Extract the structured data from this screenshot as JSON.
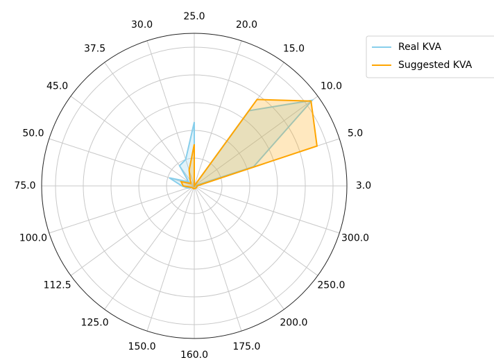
{
  "chart_data": {
    "type": "radar",
    "categories": [
      "3.0",
      "5.0",
      "10.0",
      "15.0",
      "20.0",
      "25.0",
      "30.0",
      "37.5",
      "45.0",
      "50.0",
      "75.0",
      "100.0",
      "112.5",
      "125.0",
      "150.0",
      "160.0",
      "175.0",
      "200.0",
      "250.0",
      "300.0"
    ],
    "series": [
      {
        "name": "Real KVA",
        "color": "#87ceeb",
        "values": [
          0.0,
          0.45,
          1.05,
          0.67,
          0.0,
          0.46,
          0.2,
          0.18,
          0.05,
          0.19,
          0.09,
          0.05,
          0.02,
          0.02,
          0.02,
          0.02,
          0.02,
          0.02,
          0.02,
          0.02
        ]
      },
      {
        "name": "Suggested KVA",
        "color": "#ffa500",
        "values": [
          0.02,
          0.93,
          1.04,
          0.77,
          0.0,
          0.3,
          0.12,
          0.05,
          0.03,
          0.1,
          0.08,
          0.03,
          0.02,
          0.02,
          0.02,
          0.02,
          0.02,
          0.02,
          0.02,
          0.02
        ]
      }
    ],
    "ylim": [
      0,
      1.1
    ],
    "yticks": [
      0.2,
      0.4,
      0.6,
      0.8,
      1.0
    ],
    "grid": true,
    "legend": "upper right"
  }
}
